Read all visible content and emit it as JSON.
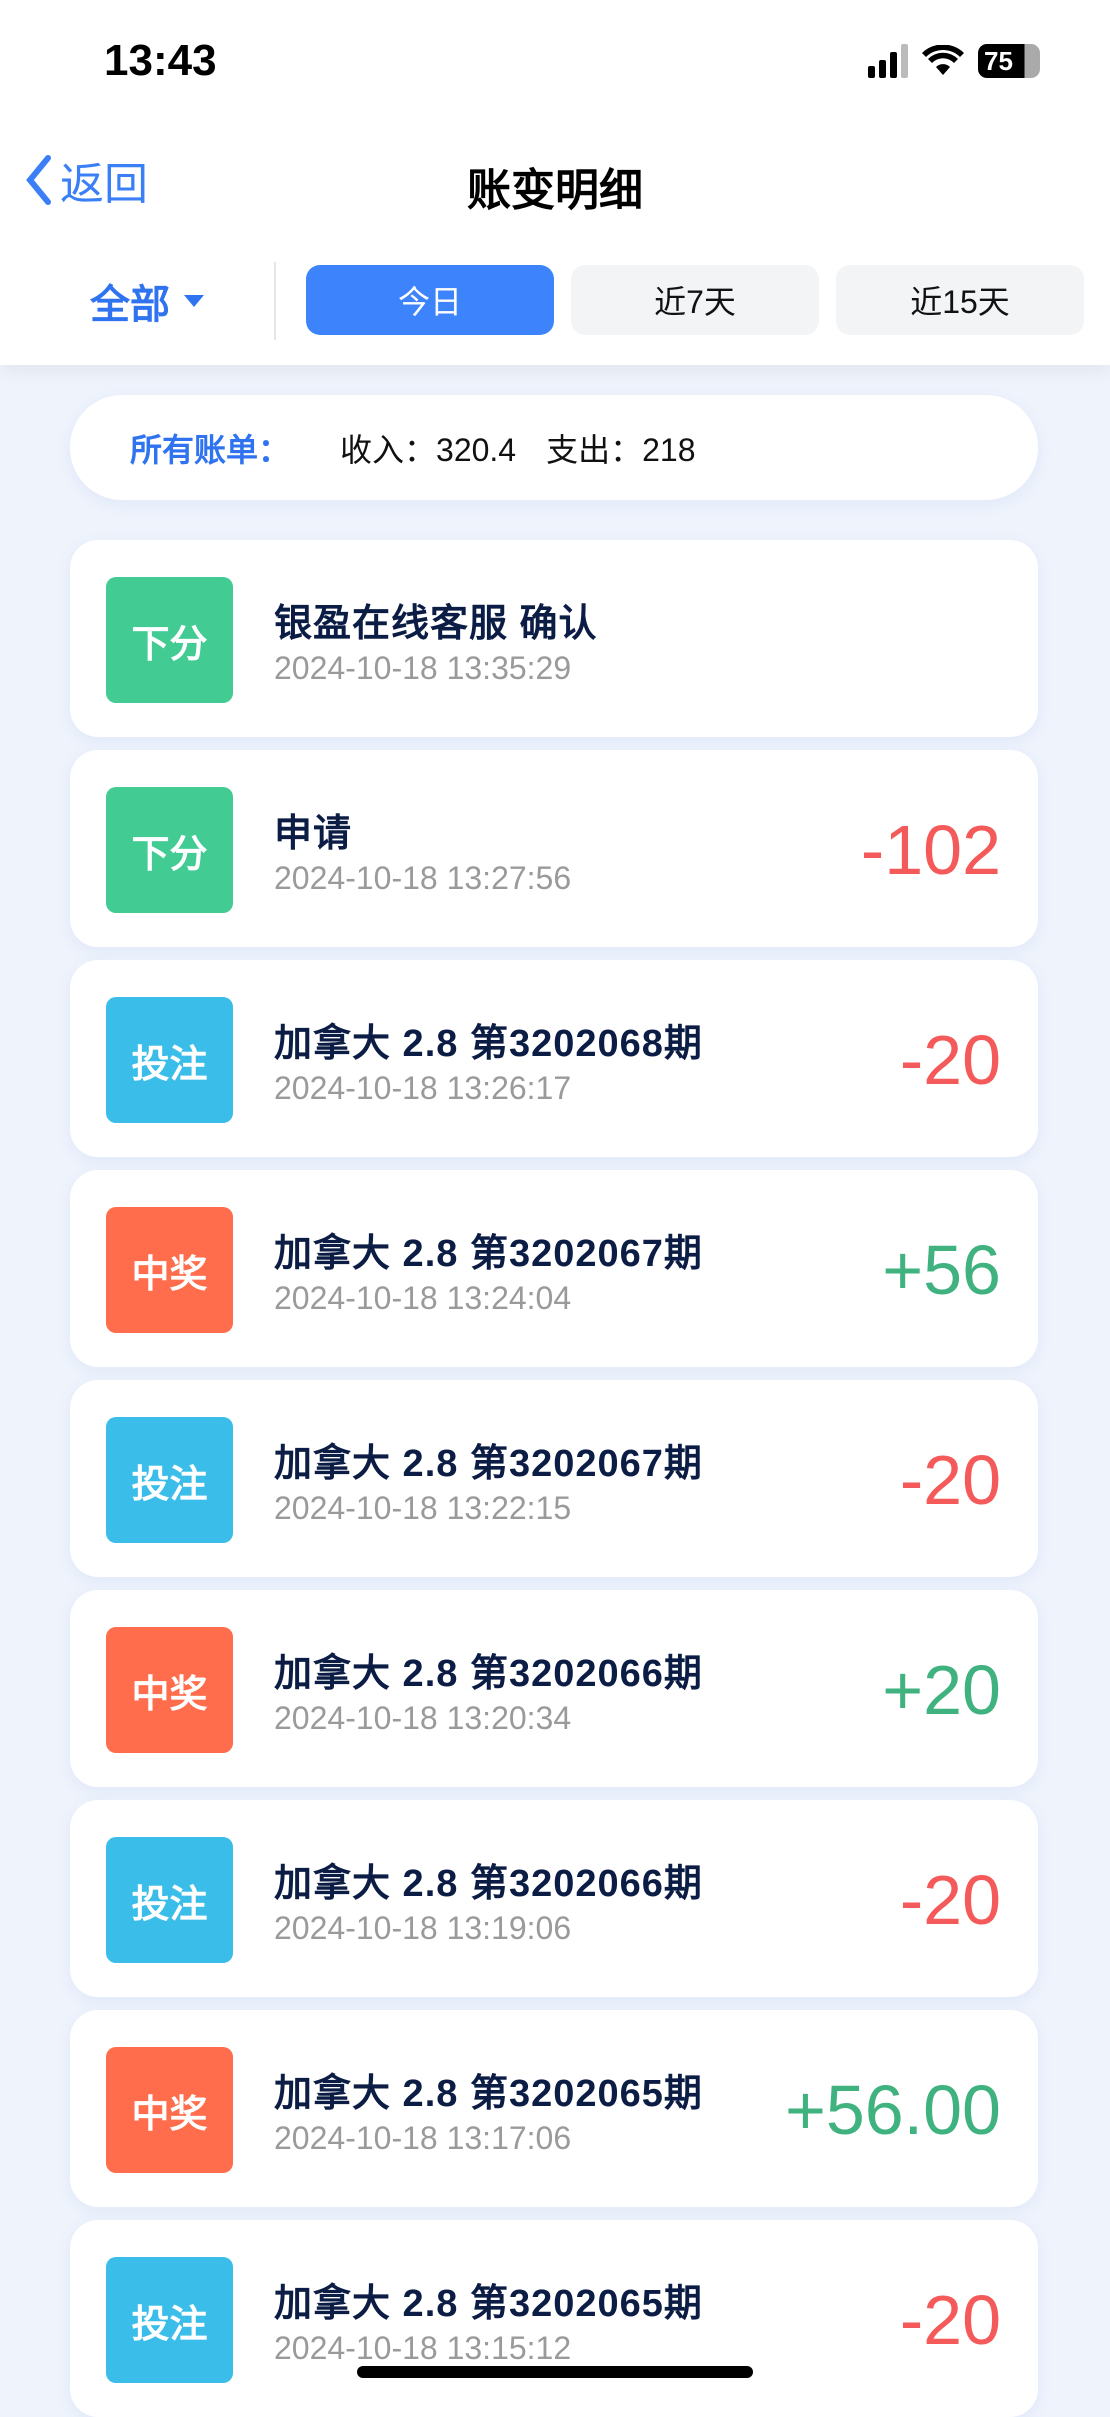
{
  "status_bar": {
    "time": "13:43",
    "battery": "75",
    "icons": [
      "signal-icon",
      "wifi-icon",
      "battery-icon"
    ]
  },
  "nav": {
    "back_label": "返回",
    "title": "账变明细"
  },
  "filter": {
    "selected": "全部"
  },
  "tabs": [
    {
      "label": "今日",
      "active": true
    },
    {
      "label": "近7天",
      "active": false
    },
    {
      "label": "近15天",
      "active": false
    }
  ],
  "summary": {
    "label": "所有账单：",
    "income": "收入：320.4",
    "expense": "支出：218"
  },
  "colors": {
    "accent": "#3d83fb",
    "green_badge": "#42cc93",
    "blue_badge": "#3bbde9",
    "orange_badge": "#ff6d4d",
    "negative": "#f55a5a",
    "positive": "#3fb27f"
  },
  "records": [
    {
      "type": "下分",
      "title": "银盈在线客服 确认",
      "date": "2024-10-18 13:35:29",
      "amount": "",
      "kind": "green"
    },
    {
      "type": "下分",
      "title": "申请",
      "date": "2024-10-18 13:27:56",
      "amount": "-102",
      "kind": "green"
    },
    {
      "type": "投注",
      "title": "加拿大 2.8 第3202068期",
      "date": "2024-10-18 13:26:17",
      "amount": "-20",
      "kind": "blue"
    },
    {
      "type": "中奖",
      "title": "加拿大 2.8 第3202067期",
      "date": "2024-10-18 13:24:04",
      "amount": "+56",
      "kind": "orange"
    },
    {
      "type": "投注",
      "title": "加拿大 2.8 第3202067期",
      "date": "2024-10-18 13:22:15",
      "amount": "-20",
      "kind": "blue"
    },
    {
      "type": "中奖",
      "title": "加拿大 2.8 第3202066期",
      "date": "2024-10-18 13:20:34",
      "amount": "+20",
      "kind": "orange"
    },
    {
      "type": "投注",
      "title": "加拿大 2.8 第3202066期",
      "date": "2024-10-18 13:19:06",
      "amount": "-20",
      "kind": "blue"
    },
    {
      "type": "中奖",
      "title": "加拿大 2.8 第3202065期",
      "date": "2024-10-18 13:17:06",
      "amount": "+56.00",
      "kind": "orange"
    },
    {
      "type": "投注",
      "title": "加拿大 2.8 第3202065期",
      "date": "2024-10-18 13:15:12",
      "amount": "-20",
      "kind": "blue"
    }
  ]
}
